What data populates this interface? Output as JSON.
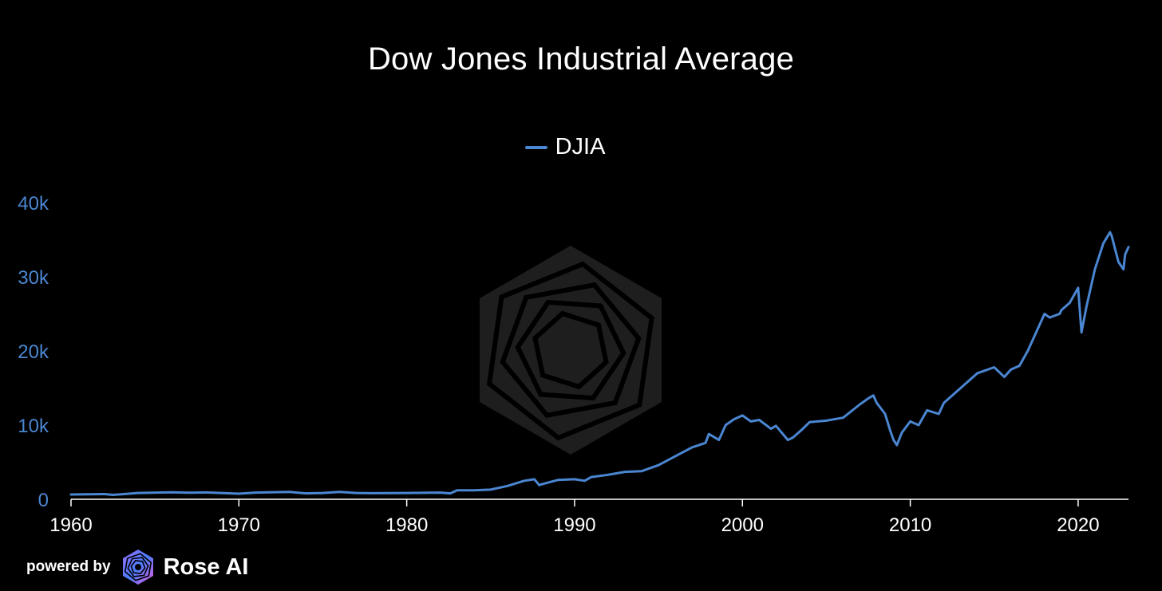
{
  "chart_data": {
    "type": "line",
    "title": "Dow Jones Industrial Average",
    "xlabel": "",
    "ylabel": "",
    "xlim": [
      1960,
      2023
    ],
    "ylim": [
      0,
      40000
    ],
    "x_ticks": [
      1960,
      1970,
      1980,
      1990,
      2000,
      2010,
      2020
    ],
    "x_tick_labels": [
      "1960",
      "1970",
      "1980",
      "1990",
      "2000",
      "2010",
      "2020"
    ],
    "y_ticks": [
      0,
      10000,
      20000,
      30000,
      40000
    ],
    "y_tick_labels": [
      "0",
      "10k",
      "20k",
      "30k",
      "40k"
    ],
    "grid": false,
    "legend_position": "top-center",
    "series": [
      {
        "name": "DJIA",
        "color": "#4a86d1",
        "x": [
          1960,
          1962,
          1962.5,
          1964,
          1966,
          1967,
          1968,
          1970,
          1971,
          1973,
          1974,
          1975,
          1976,
          1977,
          1978,
          1980,
          1982,
          1982.6,
          1983,
          1984,
          1985,
          1986,
          1987,
          1987.6,
          1987.9,
          1988,
          1989,
          1990,
          1990.6,
          1991,
          1992,
          1993,
          1994,
          1995,
          1996,
          1997,
          1997.8,
          1998,
          1998.6,
          1999,
          1999.5,
          2000,
          2000.5,
          2001,
          2001.7,
          2002,
          2002.7,
          2003,
          2003.5,
          2004,
          2005,
          2006,
          2007,
          2007.5,
          2007.8,
          2008,
          2008.5,
          2008.8,
          2009,
          2009.2,
          2009.5,
          2010,
          2010.5,
          2011,
          2011.7,
          2012,
          2013,
          2014,
          2015,
          2015.6,
          2016,
          2016.5,
          2017,
          2018,
          2018.3,
          2018.9,
          2019,
          2019.5,
          2020,
          2020.2,
          2020.5,
          2021,
          2021.5,
          2021.9,
          2022,
          2022.4,
          2022.7,
          2022.8,
          2023
        ],
        "values": [
          650,
          700,
          590,
          850,
          950,
          880,
          920,
          750,
          900,
          1000,
          800,
          850,
          1000,
          850,
          820,
          850,
          900,
          800,
          1200,
          1200,
          1300,
          1800,
          2500,
          2700,
          1900,
          2000,
          2600,
          2700,
          2500,
          3000,
          3300,
          3700,
          3800,
          4600,
          5800,
          7000,
          7600,
          8800,
          8000,
          10000,
          10800,
          11300,
          10500,
          10700,
          9500,
          9900,
          8000,
          8300,
          9300,
          10400,
          10600,
          11000,
          12800,
          13600,
          14000,
          13000,
          11500,
          9300,
          8000,
          7300,
          9000,
          10500,
          10000,
          12000,
          11500,
          13000,
          15000,
          17000,
          17800,
          16500,
          17500,
          18000,
          20000,
          25000,
          24500,
          25000,
          25500,
          26500,
          28500,
          22500,
          26000,
          31000,
          34500,
          36000,
          35500,
          32000,
          31000,
          33000,
          34000
        ]
      }
    ]
  },
  "footer": {
    "powered_label": "powered by",
    "brand_name": "Rose AI"
  },
  "colors": {
    "background": "#000000",
    "line": "#4a86d1",
    "axis": "#ffffff",
    "y_tick_text": "#4a86d1",
    "watermark": "#2a2a2a"
  }
}
